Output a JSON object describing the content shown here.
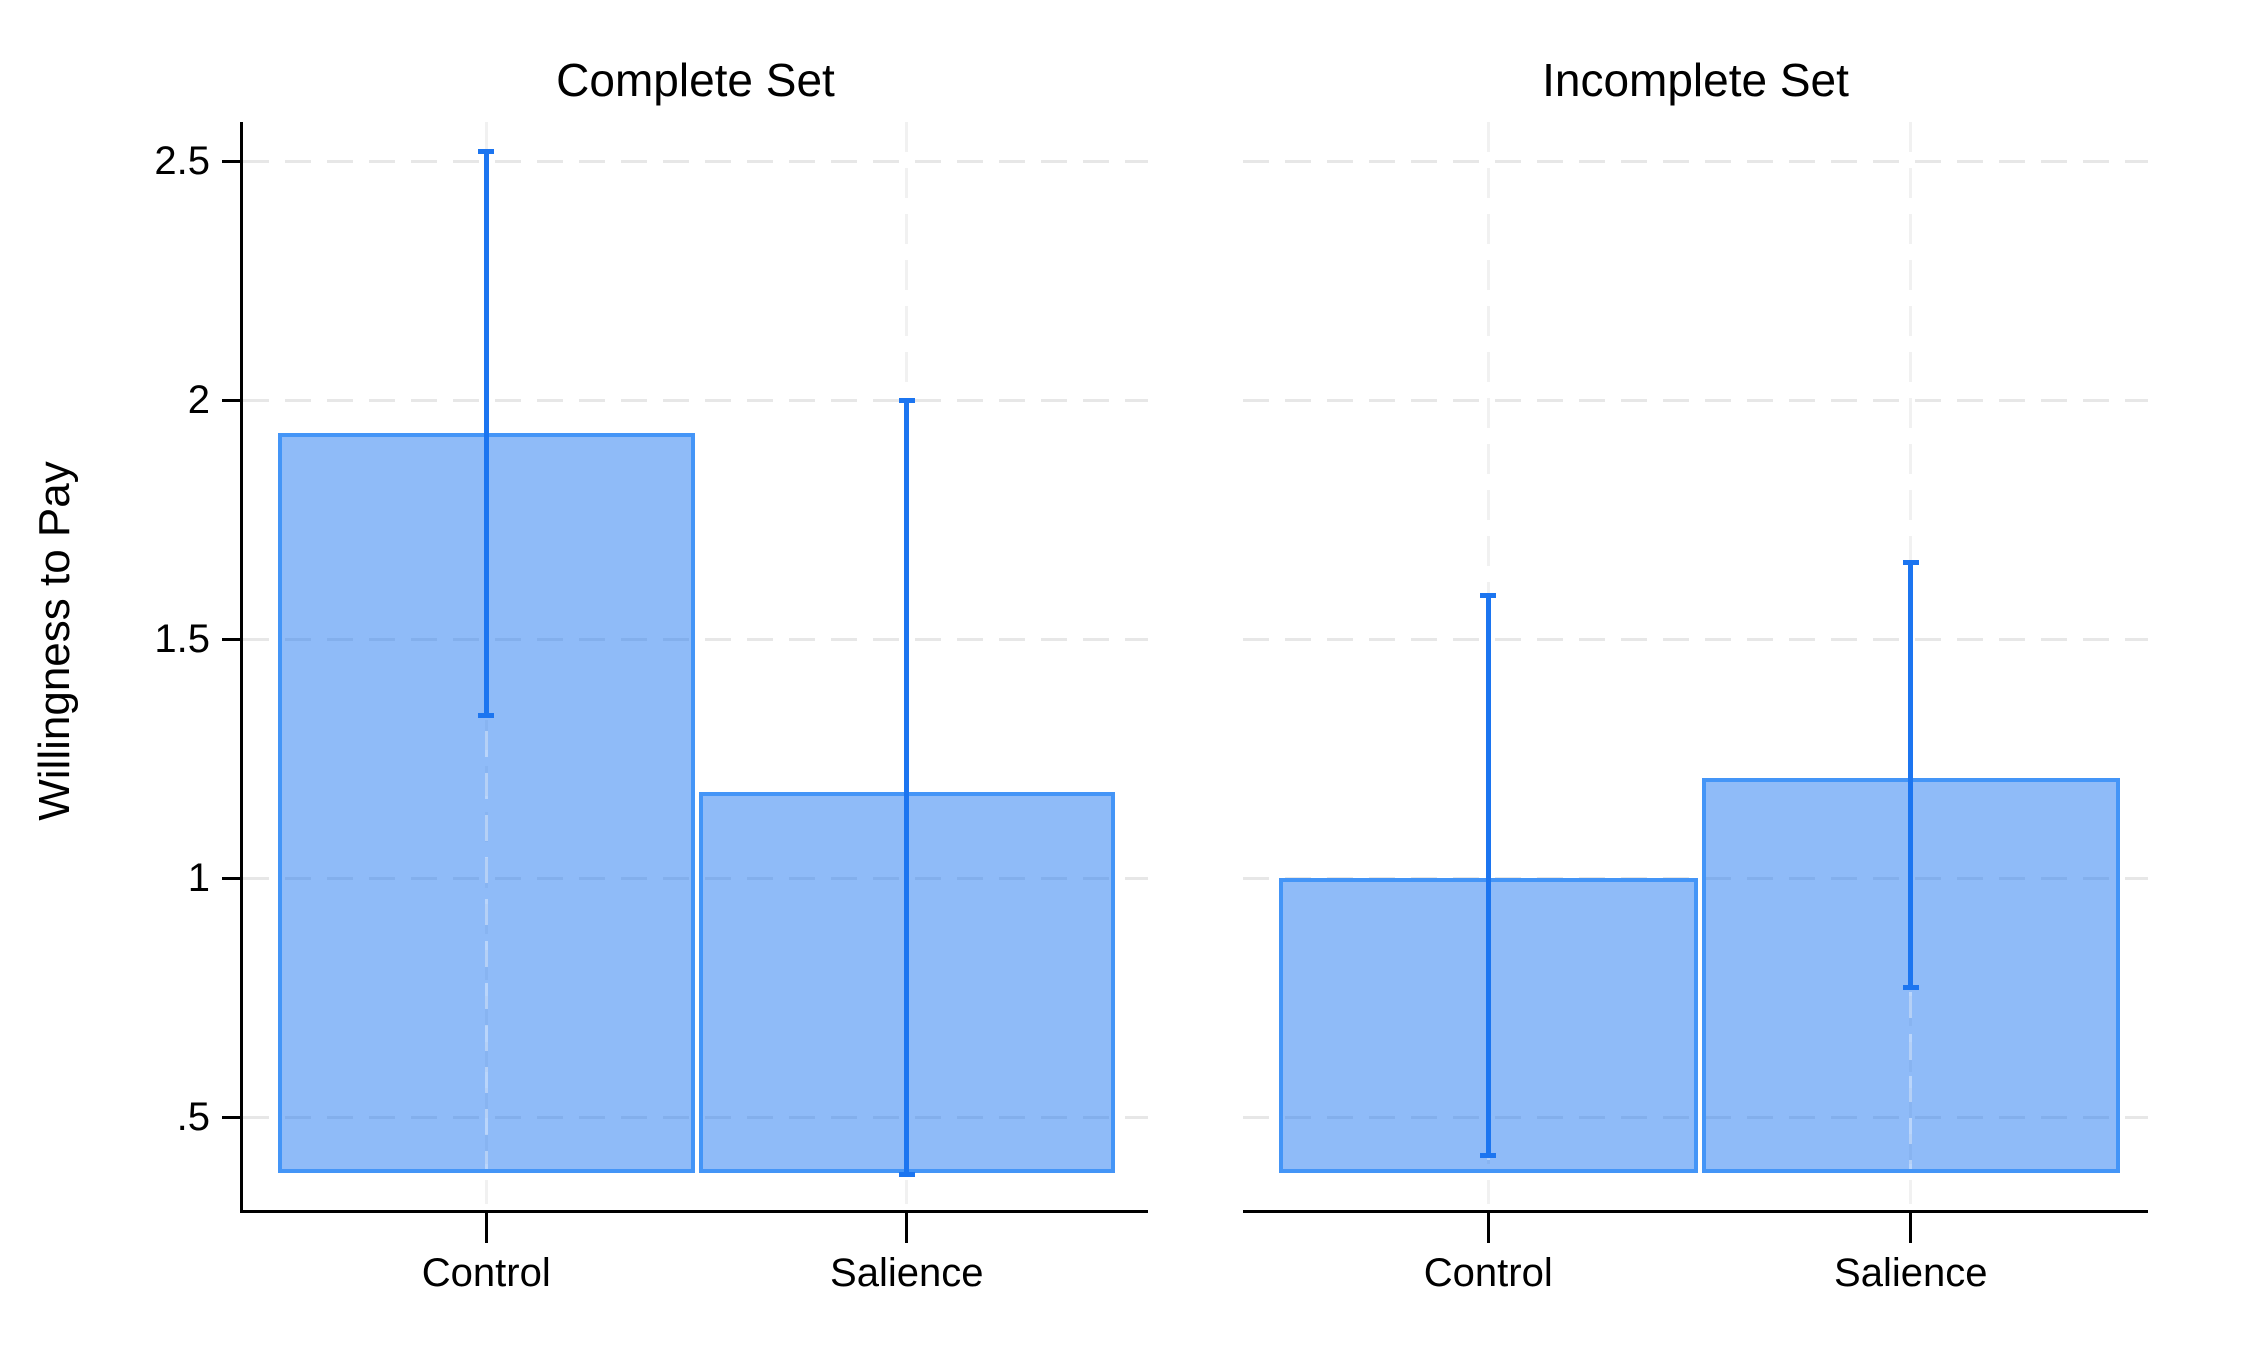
{
  "chart_data": {
    "type": "bar",
    "title": "",
    "ylabel": "Willingness to Pay",
    "panels": [
      {
        "title": "Complete Set",
        "categories": [
          "Control",
          "Salience"
        ],
        "values": [
          1.93,
          1.18
        ],
        "ci_low": [
          1.34,
          0.38
        ],
        "ci_high": [
          2.52,
          2.0
        ]
      },
      {
        "title": "Incomplete Set",
        "categories": [
          "Control",
          "Salience"
        ],
        "values": [
          1.0,
          1.21
        ],
        "ci_low": [
          0.42,
          0.77
        ],
        "ci_high": [
          1.59,
          1.66
        ]
      }
    ],
    "yticks": [
      {
        "value": 0.5,
        "label": ".5"
      },
      {
        "value": 1.0,
        "label": "1"
      },
      {
        "value": 1.5,
        "label": "1.5"
      },
      {
        "value": 2.0,
        "label": "2"
      },
      {
        "value": 2.5,
        "label": "2.5"
      }
    ],
    "ylim": [
      0.38,
      2.58
    ],
    "bar_base": 0.38,
    "grid": true,
    "legend": "none",
    "colors": {
      "bar_fill": "#8FC2FA",
      "bar_border": "#4495F7",
      "error_bar": "#1C75F0",
      "gridline": "#E7E7E7",
      "category_gridline": "#F1F1F1",
      "axis": "#000000",
      "text": "#000000",
      "background": "#FFFFFF"
    }
  }
}
